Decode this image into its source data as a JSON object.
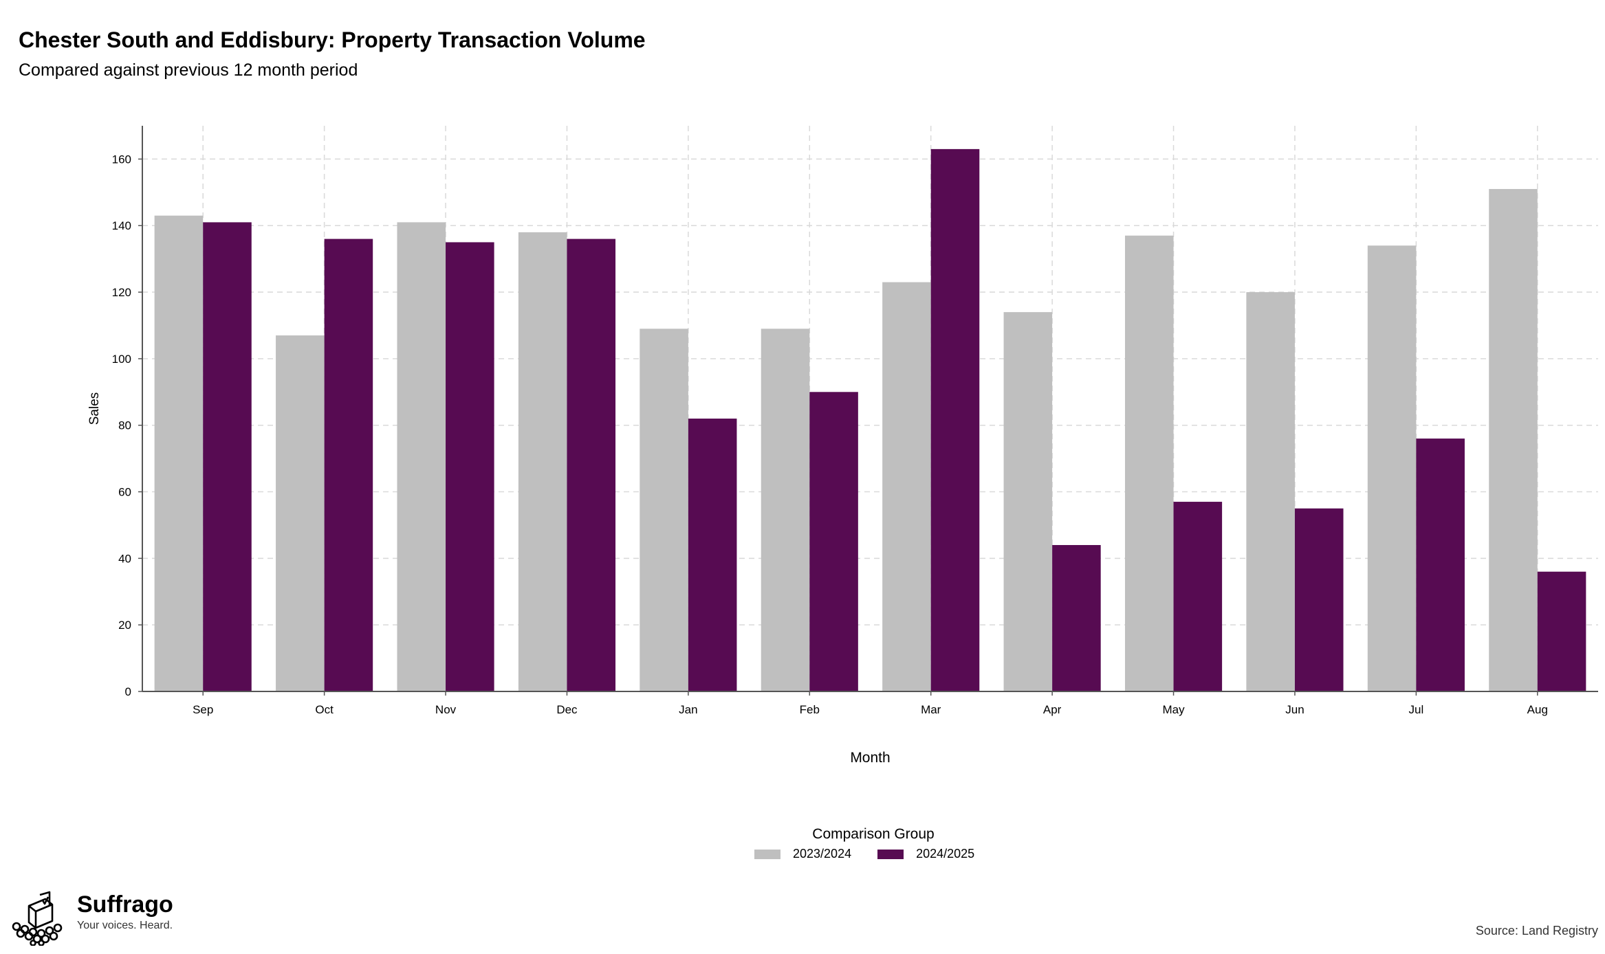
{
  "title": "Chester South and Eddisbury: Property Transaction Volume",
  "subtitle": "Compared against previous 12 month period",
  "source": "Source: Land Registry",
  "brand": {
    "name": "Suffrago",
    "tagline": "Your voices. Heard.",
    "icon": "ballot-box-icon"
  },
  "colors": {
    "series_prev": "#bfbfbf",
    "series_curr": "#570b52",
    "grid": "#d9d9d9",
    "axis": "#555555"
  },
  "chart_data": {
    "type": "bar",
    "xlabel": "Month",
    "ylabel": "Sales",
    "ylim": [
      0,
      170
    ],
    "yticks": [
      0,
      20,
      40,
      60,
      80,
      100,
      120,
      140,
      160
    ],
    "grid": true,
    "legend_title": "Comparison Group",
    "legend_position": "bottom",
    "categories": [
      "Sep",
      "Oct",
      "Nov",
      "Dec",
      "Jan",
      "Feb",
      "Mar",
      "Apr",
      "May",
      "Jun",
      "Jul",
      "Aug"
    ],
    "series": [
      {
        "name": "2023/2024",
        "values": [
          143,
          107,
          141,
          138,
          109,
          109,
          123,
          114,
          137,
          120,
          134,
          151
        ]
      },
      {
        "name": "2024/2025",
        "values": [
          141,
          136,
          135,
          136,
          82,
          90,
          163,
          44,
          57,
          55,
          76,
          36
        ]
      }
    ]
  }
}
